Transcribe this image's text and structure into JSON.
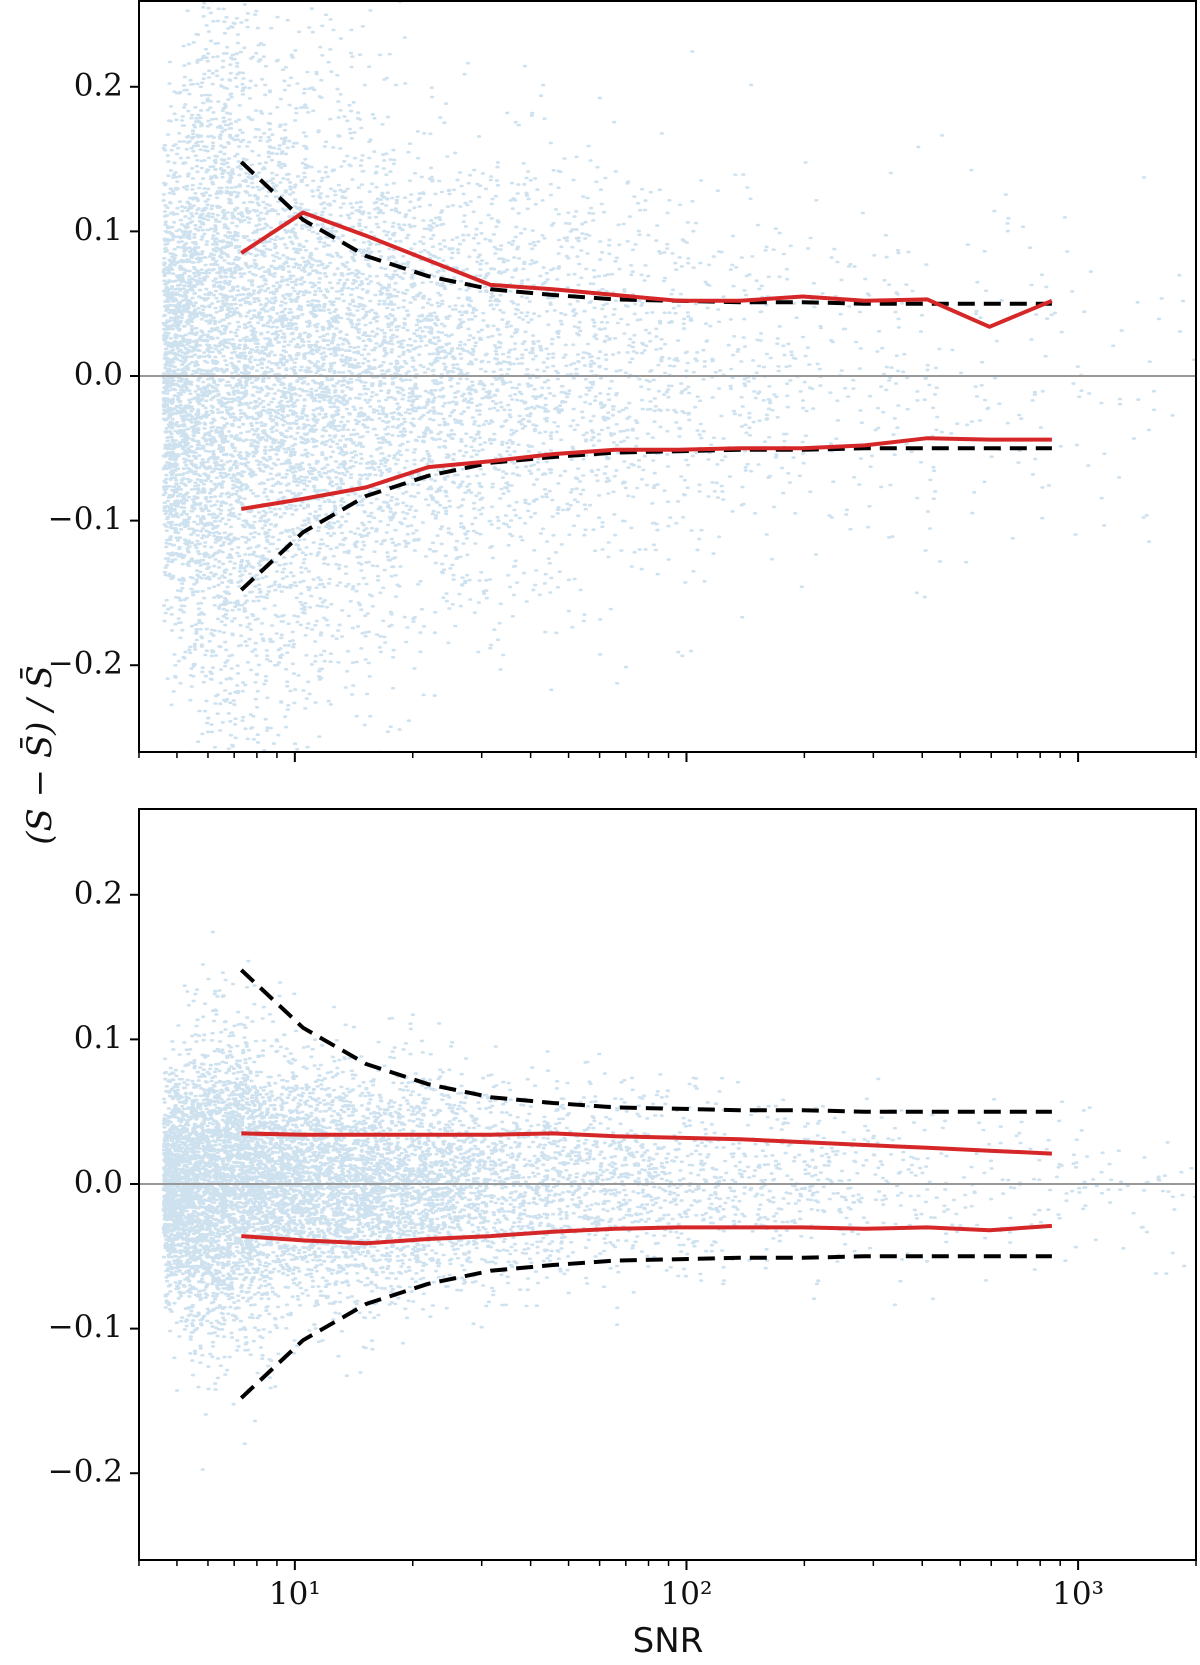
{
  "chart_data": [
    {
      "type": "scatter",
      "xlabel": "",
      "ylabel": "(S − S̄) / S̄",
      "x_scale": "log",
      "xlim": [
        4.0,
        2000
      ],
      "ylim": [
        -0.26,
        0.26
      ],
      "grid": false,
      "xticks": [
        10,
        100,
        1000
      ],
      "xtick_labels": [
        "",
        "",
        ""
      ],
      "yticks": [
        -0.2,
        -0.1,
        0.0,
        0.1,
        0.2
      ],
      "ytick_labels": [
        "−0.2",
        "−0.1",
        "0.0",
        "0.1",
        "0.2"
      ],
      "reference_line": {
        "y": 0.0,
        "color": "#999999"
      },
      "scatter": {
        "color": "#1f77b4",
        "description_only": true,
        "spread_profile": [
          [
            5,
            0.12
          ],
          [
            7,
            0.14
          ],
          [
            10,
            0.1
          ],
          [
            30,
            0.075
          ],
          [
            100,
            0.065
          ],
          [
            300,
            0.06
          ],
          [
            1000,
            0.06
          ]
        ]
      },
      "series": [
        {
          "x": [
            7.3,
            10.5,
            15.2,
            21.9,
            31.6,
            45.6,
            65.8,
            95.0,
            137,
            198,
            285,
            412,
            594,
            857
          ],
          "y": [
            0.148,
            0.108,
            0.083,
            0.069,
            0.06,
            0.056,
            0.053,
            0.052,
            0.051,
            0.051,
            0.05,
            0.05,
            0.05,
            0.05
          ],
          "color": "#000000",
          "style": "dashed"
        },
        {
          "x": [
            7.3,
            10.5,
            15.2,
            21.9,
            31.6,
            45.6,
            65.8,
            95.0,
            137,
            198,
            285,
            412,
            594,
            857
          ],
          "y": [
            -0.148,
            -0.108,
            -0.083,
            -0.069,
            -0.06,
            -0.056,
            -0.053,
            -0.052,
            -0.051,
            -0.051,
            -0.05,
            -0.05,
            -0.05,
            -0.05
          ],
          "color": "#000000",
          "style": "dashed"
        },
        {
          "x": [
            7.3,
            10.5,
            15.2,
            21.9,
            31.6,
            45.6,
            65.8,
            95.0,
            137,
            198,
            285,
            412,
            594,
            857
          ],
          "y": [
            0.085,
            0.113,
            0.097,
            0.08,
            0.063,
            0.06,
            0.056,
            0.052,
            0.052,
            0.055,
            0.052,
            0.053,
            0.034,
            0.052
          ],
          "color": "#d62728",
          "style": "solid"
        },
        {
          "x": [
            7.3,
            10.5,
            15.2,
            21.9,
            31.6,
            45.6,
            65.8,
            95.0,
            137,
            198,
            285,
            412,
            594,
            857
          ],
          "y": [
            -0.092,
            -0.085,
            -0.077,
            -0.063,
            -0.059,
            -0.054,
            -0.051,
            -0.051,
            -0.05,
            -0.05,
            -0.048,
            -0.043,
            -0.044,
            -0.044
          ],
          "color": "#d62728",
          "style": "solid"
        }
      ]
    },
    {
      "type": "scatter",
      "xlabel": "SNR",
      "ylabel": "",
      "x_scale": "log",
      "xlim": [
        4.0,
        2000
      ],
      "ylim": [
        -0.26,
        0.26
      ],
      "grid": false,
      "xticks": [
        10,
        100,
        1000
      ],
      "xtick_labels": [
        "10¹",
        "10²",
        "10³"
      ],
      "yticks": [
        -0.2,
        -0.1,
        0.0,
        0.1,
        0.2
      ],
      "ytick_labels": [
        "−0.2",
        "−0.1",
        "0.0",
        "0.1",
        "0.2"
      ],
      "reference_line": {
        "y": 0.0,
        "color": "#999999"
      },
      "scatter": {
        "color": "#1f77b4",
        "description_only": true,
        "spread_profile": [
          [
            5,
            0.055
          ],
          [
            7,
            0.05
          ],
          [
            10,
            0.04
          ],
          [
            30,
            0.034
          ],
          [
            100,
            0.03
          ],
          [
            300,
            0.027
          ],
          [
            1000,
            0.025
          ]
        ]
      },
      "series": [
        {
          "x": [
            7.3,
            10.5,
            15.2,
            21.9,
            31.6,
            45.6,
            65.8,
            95.0,
            137,
            198,
            285,
            412,
            594,
            857
          ],
          "y": [
            0.148,
            0.108,
            0.083,
            0.069,
            0.06,
            0.056,
            0.053,
            0.052,
            0.051,
            0.051,
            0.05,
            0.05,
            0.05,
            0.05
          ],
          "color": "#000000",
          "style": "dashed"
        },
        {
          "x": [
            7.3,
            10.5,
            15.2,
            21.9,
            31.6,
            45.6,
            65.8,
            95.0,
            137,
            198,
            285,
            412,
            594,
            857
          ],
          "y": [
            -0.148,
            -0.108,
            -0.083,
            -0.069,
            -0.06,
            -0.056,
            -0.053,
            -0.052,
            -0.051,
            -0.051,
            -0.05,
            -0.05,
            -0.05,
            -0.05
          ],
          "color": "#000000",
          "style": "dashed"
        },
        {
          "x": [
            7.3,
            10.5,
            15.2,
            21.9,
            31.6,
            45.6,
            65.8,
            95.0,
            137,
            198,
            285,
            412,
            594,
            857
          ],
          "y": [
            0.035,
            0.034,
            0.034,
            0.034,
            0.034,
            0.035,
            0.033,
            0.032,
            0.031,
            0.029,
            0.027,
            0.025,
            0.023,
            0.021
          ],
          "color": "#d62728",
          "style": "solid"
        },
        {
          "x": [
            7.3,
            10.5,
            15.2,
            21.9,
            31.6,
            45.6,
            65.8,
            95.0,
            137,
            198,
            285,
            412,
            594,
            857
          ],
          "y": [
            -0.036,
            -0.039,
            -0.041,
            -0.038,
            -0.036,
            -0.033,
            -0.031,
            -0.03,
            -0.03,
            -0.03,
            -0.031,
            -0.03,
            -0.032,
            -0.029
          ],
          "color": "#d62728",
          "style": "solid"
        }
      ]
    }
  ]
}
